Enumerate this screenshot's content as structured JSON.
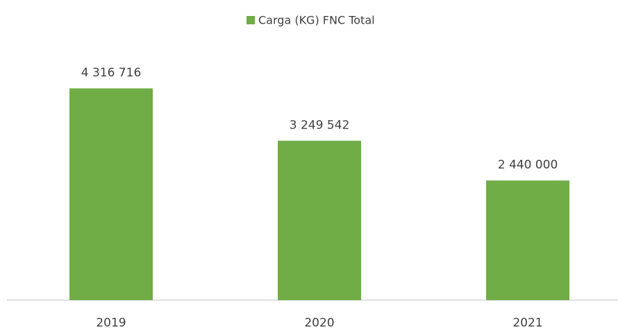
{
  "chart_data": {
    "type": "bar",
    "categories": [
      "2019",
      "2020",
      "2021"
    ],
    "series": [
      {
        "name": "Carga (KG) FNC Total",
        "color": "#70ad47",
        "values": [
          4316716,
          3249542,
          2440000
        ],
        "value_labels": [
          "4 316 716",
          "3 249 542",
          "2 440 000"
        ]
      }
    ],
    "ylim": [
      0,
      5000000
    ],
    "legend": "top"
  }
}
